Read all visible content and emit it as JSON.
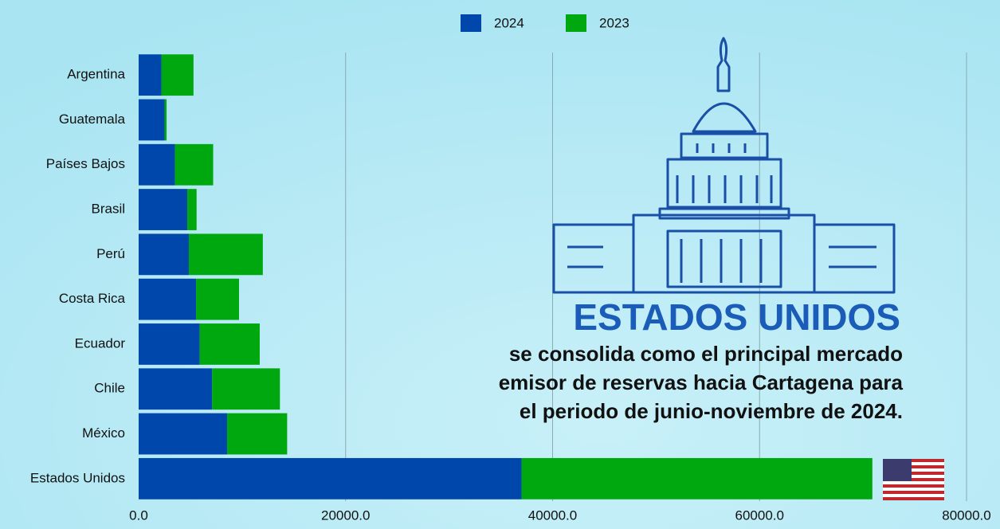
{
  "chart_data": {
    "type": "stacked-bar-horizontal",
    "categories": [
      "Argentina",
      "Guatemala",
      "Países Bajos",
      "Brasil",
      "Perú",
      "Costa Rica",
      "Ecuador",
      "Chile",
      "México",
      "Estados Unidos"
    ],
    "series": [
      {
        "name": "2024",
        "color": "#0047ab",
        "values": [
          2200,
          2500,
          3500,
          4700,
          4850,
          5550,
          5900,
          7100,
          8550,
          37000
        ]
      },
      {
        "name": "2023",
        "color": "#00a810",
        "values": [
          3100,
          200,
          3700,
          900,
          7150,
          4150,
          5800,
          6550,
          5800,
          33900
        ]
      }
    ],
    "xlim": [
      0,
      80000
    ],
    "xticks": [
      {
        "value": 0,
        "label": "0.0"
      },
      {
        "value": 20000,
        "label": "20000.0"
      },
      {
        "value": 40000,
        "label": "40000.0"
      },
      {
        "value": 60000,
        "label": "60000.0"
      },
      {
        "value": 80000,
        "label": "80000.0"
      }
    ],
    "grid": true,
    "legend": "top",
    "annotations": [
      "ESTADOS UNIDOS",
      "se consolida como el principal mercado",
      "emisor de reservas hacia Cartagena para",
      "el periodo de junio-noviembre de 2024."
    ]
  }
}
